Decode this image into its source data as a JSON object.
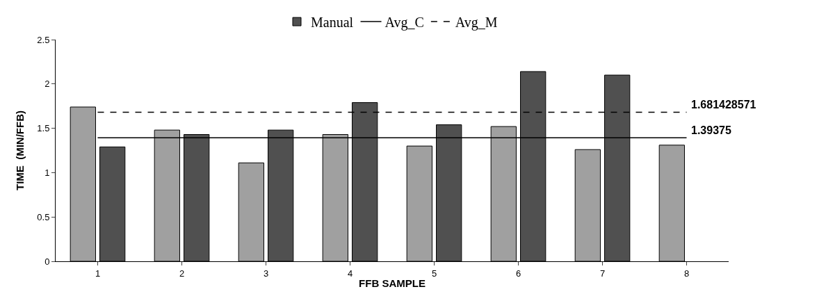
{
  "chart_data": {
    "type": "bar",
    "xlabel": "FFB SAMPLE",
    "ylabel": "TIME  (MIN/FFB)",
    "categories": [
      "1",
      "2",
      "3",
      "4",
      "5",
      "6",
      "7",
      "8"
    ],
    "series": [
      {
        "color": "#a0a0a0",
        "values": [
          1.74,
          1.48,
          1.11,
          1.43,
          1.3,
          1.52,
          1.26,
          1.31
        ]
      },
      {
        "name": "Manual",
        "color": "#505050",
        "values": [
          1.29,
          1.43,
          1.48,
          1.79,
          1.54,
          2.14,
          2.1,
          null
        ]
      },
      {
        "name": "Avg_C",
        "type": "line",
        "color": "#000000",
        "line_style": "solid",
        "values": [
          1.39375,
          1.39375,
          1.39375,
          1.39375,
          1.39375,
          1.39375,
          1.39375,
          1.39375
        ]
      },
      {
        "name": "Avg_M",
        "type": "line",
        "color": "#000000",
        "line_style": "dashed",
        "values": [
          1.681428571,
          1.681428571,
          1.681428571,
          1.681428571,
          1.681428571,
          1.681428571,
          1.681428571,
          1.681428571
        ]
      }
    ],
    "annotations": [
      {
        "text": "1.681428571",
        "x": "8",
        "y": 1.681428571
      },
      {
        "text": "1.39375",
        "x": "8",
        "y": 1.39375
      }
    ],
    "ylim": [
      0,
      2.5
    ],
    "yticks": [
      0,
      0.5,
      1,
      1.5,
      2,
      2.5
    ],
    "grid": false,
    "legend": "top",
    "marker": "none"
  }
}
